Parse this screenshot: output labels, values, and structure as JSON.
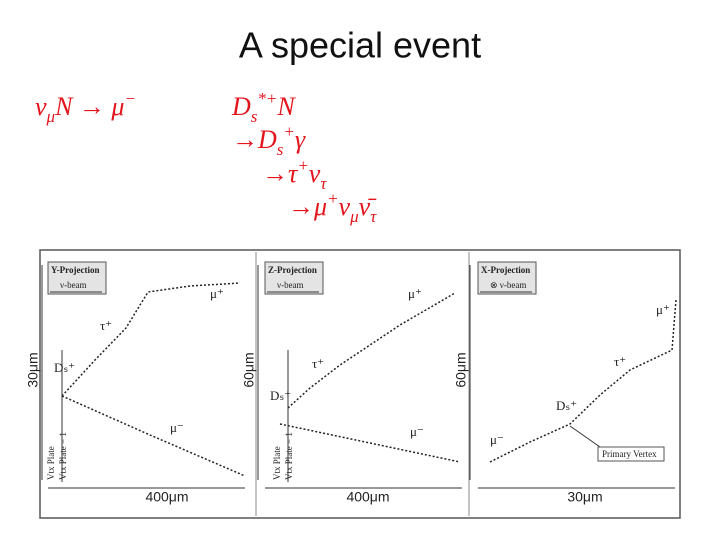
{
  "title": "A special event",
  "formulas": [
    [
      {
        "t": "ν"
      },
      {
        "t": "μ",
        "s": "sub"
      },
      {
        "t": "N → μ"
      },
      {
        "t": "−",
        "s": "sup"
      }
    ],
    [
      {
        "t": "D"
      },
      {
        "t": "s",
        "s": "sub"
      },
      {
        "t": "*+",
        "s": "sup"
      },
      {
        "t": "N"
      }
    ],
    [
      {
        "t": "→D"
      },
      {
        "t": "s",
        "s": "sub"
      },
      {
        "t": "+",
        "s": "sup"
      },
      {
        "t": "γ"
      }
    ],
    [
      {
        "t": "→τ"
      },
      {
        "t": "+",
        "s": "sup"
      },
      {
        "t": "ν"
      },
      {
        "t": "τ",
        "s": "sub"
      }
    ],
    [
      {
        "t": "→μ"
      },
      {
        "t": "+",
        "s": "sup"
      },
      {
        "t": "ν"
      },
      {
        "t": "μ",
        "s": "sub"
      },
      {
        "t": "ν̄"
      },
      {
        "t": "τ",
        "s": "sub"
      }
    ]
  ],
  "panels": [
    {
      "projection": "Y-Projection",
      "beam": "ν-beam",
      "vertical_scale": "30μm",
      "horizontal_scale": "400μm",
      "labels": [
        "μ⁺",
        "τ⁺",
        "Dₛ⁺",
        "μ⁻"
      ],
      "plates": [
        "Vtx Plate",
        "Vtx Plate − 1"
      ]
    },
    {
      "projection": "Z-Projection",
      "beam": "ν-beam",
      "vertical_scale": "60μm",
      "horizontal_scale": "400μm",
      "labels": [
        "μ⁺",
        "τ⁺",
        "Dₛ⁺",
        "μ⁻"
      ],
      "plates": [
        "Vtx Plate",
        "Vtx Plate − 1"
      ]
    },
    {
      "projection": "X-Projection",
      "beam": "⊗ ν-beam",
      "vertical_scale": "60μm",
      "horizontal_scale": "30μm",
      "labels": [
        "μ⁺",
        "τ⁺",
        "Dₛ⁺",
        "μ⁻"
      ],
      "vertex": "Primary Vertex"
    }
  ]
}
